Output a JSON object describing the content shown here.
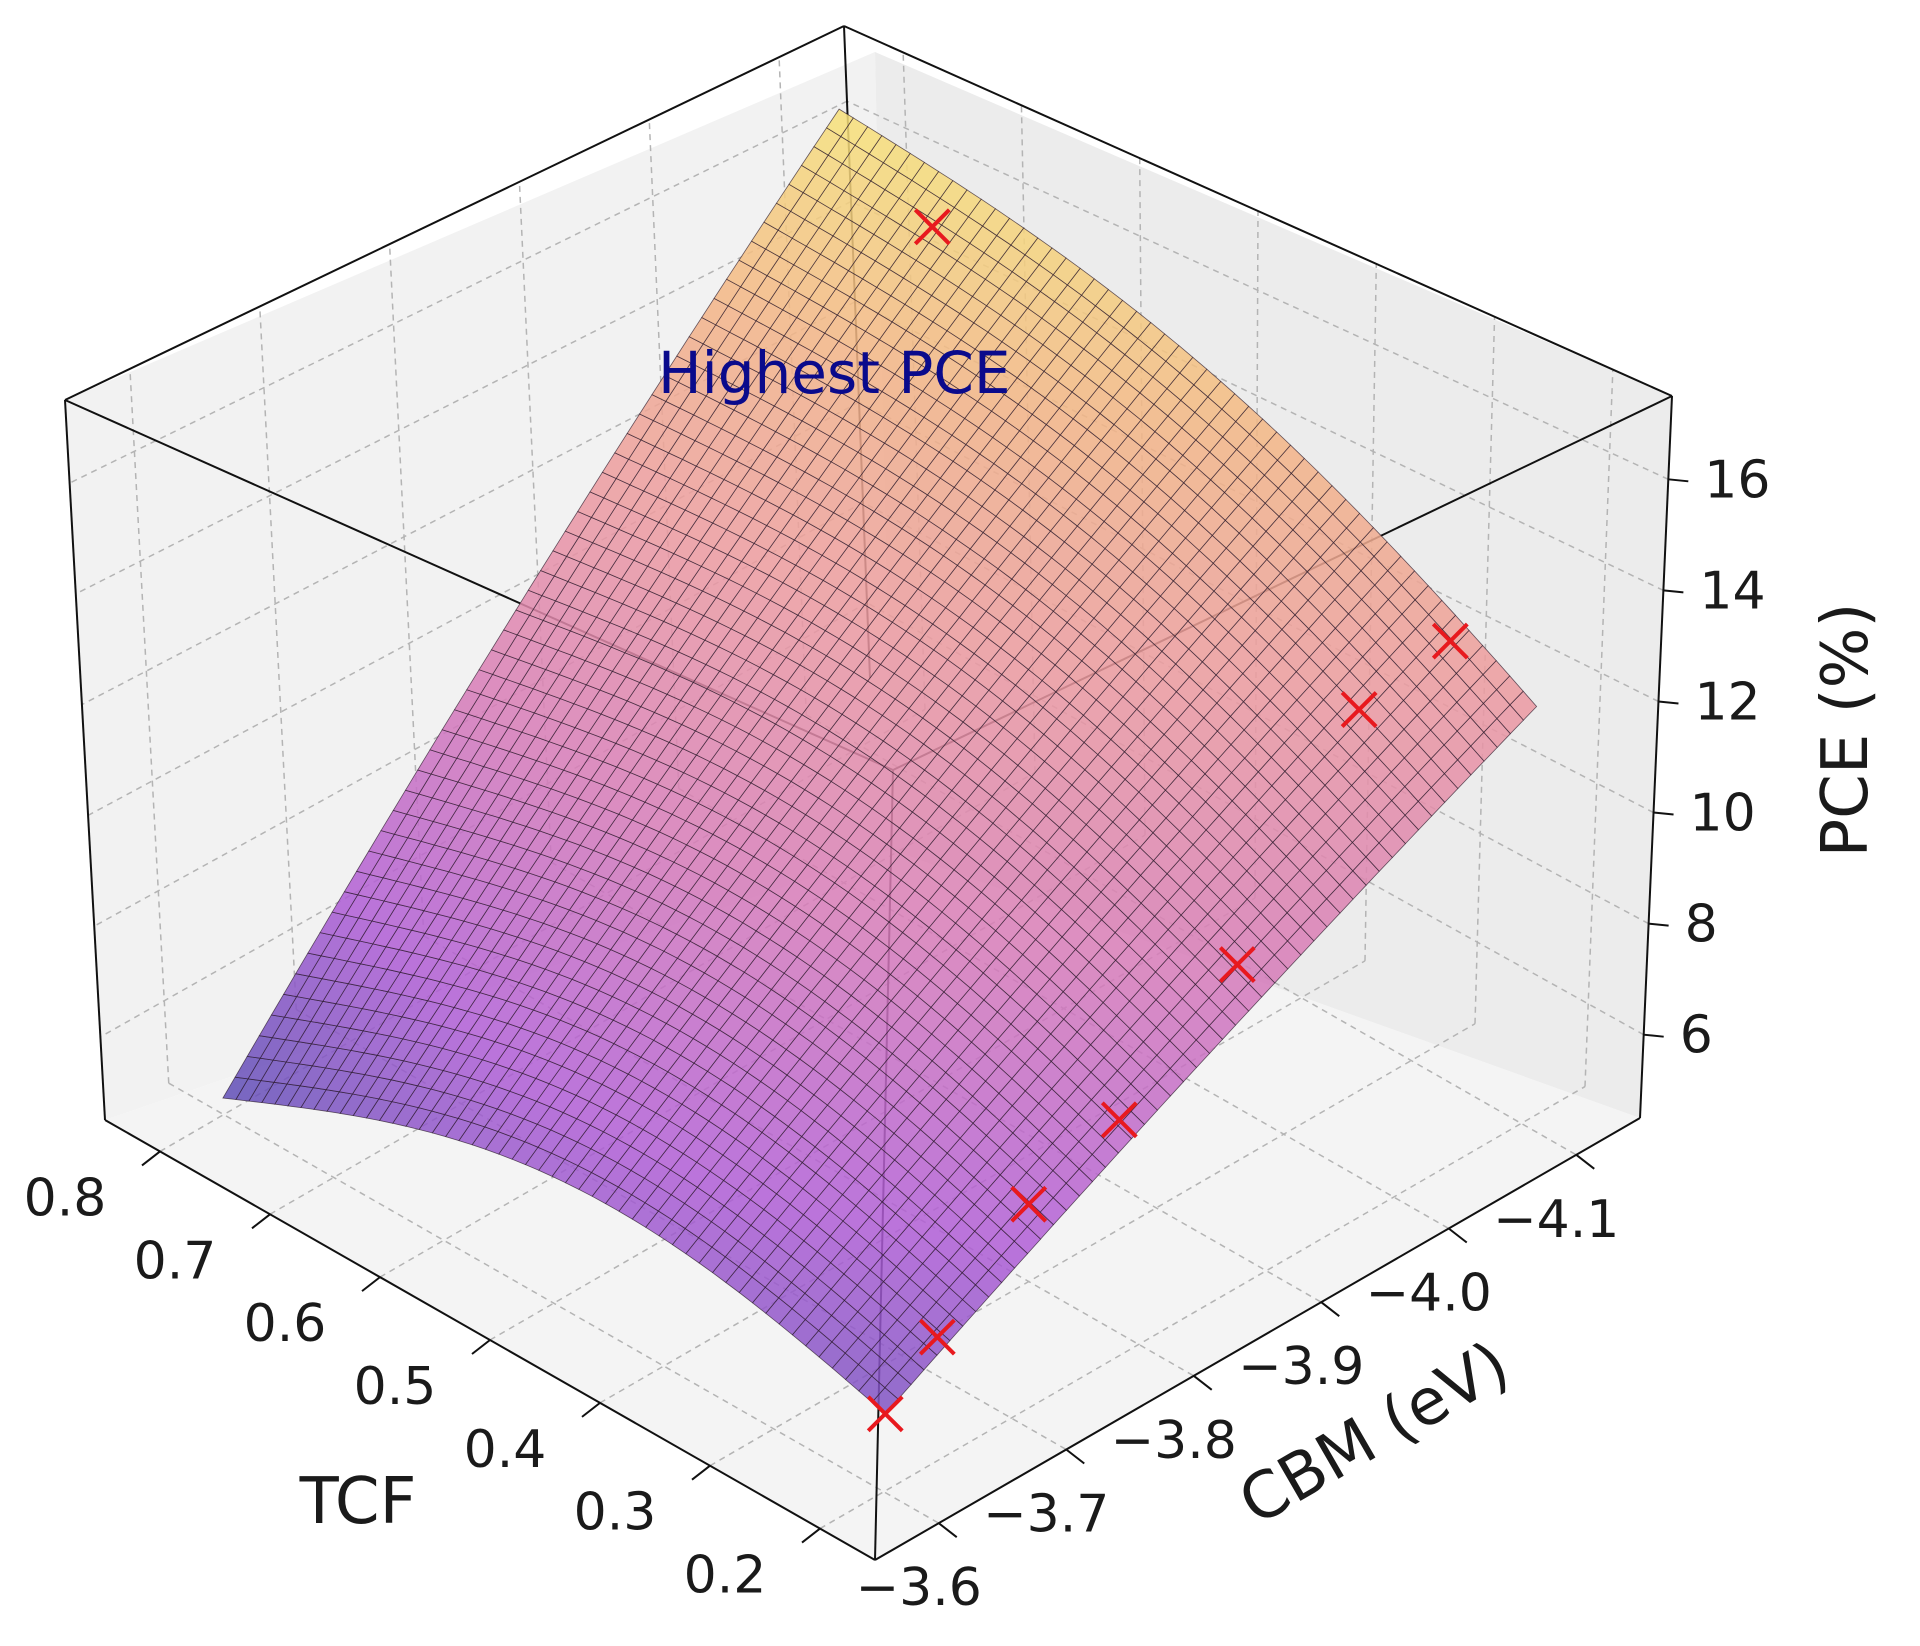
{
  "chart_data": {
    "type": "surface3d",
    "title": "",
    "xlabel": "TCF",
    "ylabel": "CBM (eV)",
    "zlabel": "PCE (%)",
    "xlim": [
      0.15,
      0.85
    ],
    "ylim": [
      -4.15,
      -3.55
    ],
    "zlim": [
      4.5,
      17.5
    ],
    "x_ticks": [
      0.8,
      0.7,
      0.6,
      0.5,
      0.4,
      0.3,
      0.2
    ],
    "x_tick_labels": [
      "0.8",
      "0.7",
      "0.6",
      "0.5",
      "0.4",
      "0.3",
      "0.2"
    ],
    "y_ticks": [
      -4.1,
      -4.0,
      -3.9,
      -3.8,
      -3.7,
      -3.6
    ],
    "y_tick_labels": [
      "−4.1",
      "−4.0",
      "−3.9",
      "−3.8",
      "−3.7",
      "−3.6"
    ],
    "z_ticks": [
      16,
      14,
      12,
      10,
      8,
      6
    ],
    "z_tick_labels": [
      "16",
      "14",
      "12",
      "10",
      "8",
      "6"
    ],
    "grid": true,
    "colormap": [
      "#5a4cb4",
      "#b05dd6",
      "#d77bb8",
      "#ec9aa1",
      "#f3b586",
      "#f7e278"
    ],
    "surface_alpha": 0.85,
    "surface_corners": {
      "tcf_0.2_cbm_-3.6": 5.8,
      "tcf_0.8_cbm_-3.6": 4.8,
      "tcf_0.2_cbm_-4.1": 12.0,
      "tcf_0.8_cbm_-4.1": 17.0
    },
    "points": [
      {
        "tcf": 0.7,
        "cbm": -4.08,
        "pce": 16.0
      },
      {
        "tcf": 0.2,
        "cbm": -4.03,
        "pce": 14.0
      },
      {
        "tcf": 0.2,
        "cbm": -3.96,
        "pce": 13.6
      },
      {
        "tcf": 0.2,
        "cbm": -3.87,
        "pce": 10.2
      },
      {
        "tcf": 0.2,
        "cbm": -3.78,
        "pce": 8.6
      },
      {
        "tcf": 0.2,
        "cbm": -3.71,
        "pce": 8.0
      },
      {
        "tcf": 0.2,
        "cbm": -3.64,
        "pce": 6.6
      },
      {
        "tcf": 0.2,
        "cbm": -3.6,
        "pce": 5.8
      }
    ],
    "point_color": "#e8191e",
    "annotation": {
      "text": "Highest PCE",
      "color": "#0a0a8c"
    }
  }
}
